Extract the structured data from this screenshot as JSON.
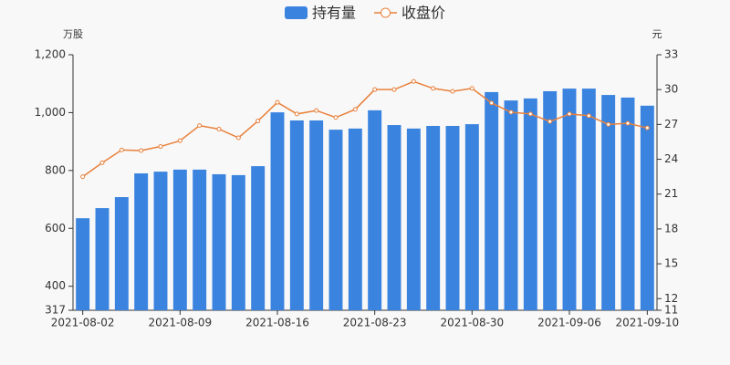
{
  "chart_data": {
    "type": "bar",
    "y_label": "万股",
    "y2_label": "元",
    "categories": [
      "2021-08-02",
      null,
      null,
      null,
      null,
      "2021-08-09",
      null,
      null,
      null,
      null,
      "2021-08-16",
      null,
      null,
      null,
      null,
      "2021-08-23",
      null,
      null,
      null,
      null,
      "2021-08-30",
      null,
      null,
      null,
      null,
      "2021-09-06",
      null,
      null,
      null,
      "2021-09-10"
    ],
    "series": [
      {
        "name": "持有量",
        "type": "bar",
        "color": "#3a84e0",
        "values": [
          635,
          670,
          708,
          790,
          796,
          803,
          803,
          787,
          784,
          815,
          1001,
          973,
          973,
          941,
          945,
          1008,
          957,
          945,
          954,
          954,
          960,
          1071,
          1042,
          1049,
          1074,
          1083,
          1083,
          1061,
          1052,
          1024
        ]
      },
      {
        "name": "收盘价",
        "type": "line",
        "axis": "y2",
        "color": "#e8803c",
        "values": [
          22.5,
          23.7,
          24.8,
          24.75,
          25.1,
          25.6,
          26.9,
          26.6,
          25.85,
          27.3,
          28.9,
          27.9,
          28.2,
          27.6,
          28.3,
          30.0,
          30.0,
          30.7,
          30.1,
          29.85,
          30.1,
          28.85,
          28.05,
          27.9,
          27.25,
          27.9,
          27.75,
          27.0,
          27.1,
          26.7
        ]
      }
    ],
    "ylim": [
      317,
      1200
    ],
    "yticks": [
      317,
      400,
      600,
      800,
      {
        "value": 1000,
        "label": "1,000"
      },
      {
        "value": 1200,
        "label": "1,200"
      }
    ],
    "y2lim": [
      11,
      33
    ],
    "y2ticks": [
      11,
      12,
      15,
      18,
      21,
      24,
      27,
      30,
      33
    ],
    "legend": "top"
  }
}
